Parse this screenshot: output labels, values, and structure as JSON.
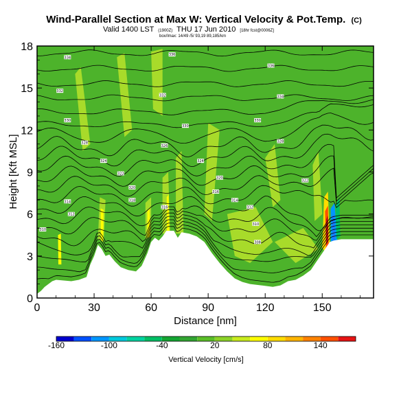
{
  "chart_data": {
    "type": "contour-section",
    "title": "Wind-Parallel Section at Max W: Vertical Velocity & Pot.Temp.",
    "title_mark": "(C)",
    "subtitle_main": "Valid 1400 LST",
    "subtitle_utc": "(1900Z)",
    "subtitle_date": "THU 17 Jun 2010",
    "subtitle_run": "[18hr fcst@0006Z]",
    "info_line": "box/lmax: 14/49 /5/ 93,19 89,185/km",
    "xlabel": "Distance [nm]",
    "ylabel": "Height [Kft MSL]",
    "xlim": [
      0,
      177
    ],
    "ylim": [
      0,
      18
    ],
    "xticks": [
      0,
      30,
      60,
      90,
      120,
      150
    ],
    "yticks": [
      0,
      3,
      6,
      9,
      12,
      15,
      18
    ],
    "colorbar": {
      "label": "Vertical Velocity [cm/s]",
      "tick_labels": [
        "-160",
        "-100",
        "-40",
        "20",
        "80",
        "140"
      ],
      "tick_values": [
        -160,
        -100,
        -40,
        20,
        80,
        140
      ],
      "range": [
        -160,
        180
      ],
      "step": 20,
      "colors": [
        "#0000cd",
        "#0050ff",
        "#0096ff",
        "#00c8dc",
        "#00d2a0",
        "#00be64",
        "#14a532",
        "#32a532",
        "#5abe28",
        "#8cd228",
        "#c8eb1e",
        "#ffff00",
        "#ffdc00",
        "#ffb400",
        "#ff8200",
        "#ff5000",
        "#e61414"
      ]
    },
    "terrain": [
      [
        0,
        0.3
      ],
      [
        2,
        0.5
      ],
      [
        4,
        0.8
      ],
      [
        6,
        1.0
      ],
      [
        8,
        1.2
      ],
      [
        10,
        1.3
      ],
      [
        14,
        1.25
      ],
      [
        18,
        1.2
      ],
      [
        22,
        1.3
      ],
      [
        26,
        1.5
      ],
      [
        28,
        2.4
      ],
      [
        30,
        3.0
      ],
      [
        32,
        3.8
      ],
      [
        34,
        3.5
      ],
      [
        36,
        3.0
      ],
      [
        38,
        3.1
      ],
      [
        41,
        2.6
      ],
      [
        44,
        2.2
      ],
      [
        48,
        2.0
      ],
      [
        52,
        1.9
      ],
      [
        55,
        2.3
      ],
      [
        58,
        3.2
      ],
      [
        60,
        4.0
      ],
      [
        62,
        4.3
      ],
      [
        64,
        4.1
      ],
      [
        66,
        4.4
      ],
      [
        68,
        4.8
      ],
      [
        72,
        4.8
      ],
      [
        74,
        4.3
      ],
      [
        76,
        4.7
      ],
      [
        80,
        4.6
      ],
      [
        84,
        4.4
      ],
      [
        88,
        4.0
      ],
      [
        92,
        3.2
      ],
      [
        96,
        2.5
      ],
      [
        100,
        1.9
      ],
      [
        104,
        1.4
      ],
      [
        108,
        1.15
      ],
      [
        112,
        1.0
      ],
      [
        118,
        0.9
      ],
      [
        124,
        0.8
      ],
      [
        128,
        0.9
      ],
      [
        132,
        1.2
      ],
      [
        136,
        1.3
      ],
      [
        140,
        1.6
      ],
      [
        144,
        2.0
      ],
      [
        148,
        2.8
      ],
      [
        152,
        3.6
      ],
      [
        154,
        4.0
      ],
      [
        156,
        4.1
      ],
      [
        160,
        4.2
      ],
      [
        170,
        4.2
      ],
      [
        177,
        4.2
      ]
    ],
    "theta_contour_labels": [
      {
        "x": 16,
        "y": 17.2,
        "label": "334"
      },
      {
        "x": 71,
        "y": 17.4,
        "label": "336"
      },
      {
        "x": 123,
        "y": 16.6,
        "label": "336"
      },
      {
        "x": 12,
        "y": 14.8,
        "label": "332"
      },
      {
        "x": 66,
        "y": 14.5,
        "label": "332"
      },
      {
        "x": 128,
        "y": 14.4,
        "label": "334"
      },
      {
        "x": 16,
        "y": 12.7,
        "label": "330"
      },
      {
        "x": 78,
        "y": 12.3,
        "label": "330"
      },
      {
        "x": 116,
        "y": 12.7,
        "label": "330"
      },
      {
        "x": 25,
        "y": 11.1,
        "label": "328"
      },
      {
        "x": 67,
        "y": 10.9,
        "label": "326"
      },
      {
        "x": 128,
        "y": 11.2,
        "label": "328"
      },
      {
        "x": 35,
        "y": 9.8,
        "label": "324"
      },
      {
        "x": 86,
        "y": 9.8,
        "label": "324"
      },
      {
        "x": 44,
        "y": 8.9,
        "label": "322"
      },
      {
        "x": 96,
        "y": 8.6,
        "label": "320"
      },
      {
        "x": 141,
        "y": 8.4,
        "label": "322"
      },
      {
        "x": 50,
        "y": 7.9,
        "label": "320"
      },
      {
        "x": 94,
        "y": 7.6,
        "label": "316"
      },
      {
        "x": 50,
        "y": 7.0,
        "label": "318"
      },
      {
        "x": 104,
        "y": 7.0,
        "label": "314"
      },
      {
        "x": 16,
        "y": 6.9,
        "label": "314"
      },
      {
        "x": 67,
        "y": 6.5,
        "label": "316"
      },
      {
        "x": 112,
        "y": 6.5,
        "label": "312"
      },
      {
        "x": 18,
        "y": 6.0,
        "label": "312"
      },
      {
        "x": 115,
        "y": 5.3,
        "label": "310"
      },
      {
        "x": 3,
        "y": 4.9,
        "label": "310"
      },
      {
        "x": 116,
        "y": 4.0,
        "label": "308"
      }
    ]
  }
}
